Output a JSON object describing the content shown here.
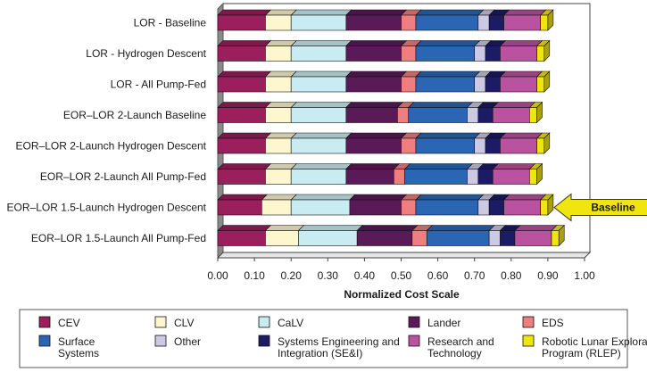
{
  "chart_data": {
    "type": "bar",
    "orientation": "horizontal",
    "stacked": true,
    "categories": [
      "LOR - Baseline",
      "LOR - Hydrogen Descent",
      "LOR - All Pump-Fed",
      "EOR–LOR 2-Launch Baseline",
      "EOR–LOR 2-Launch Hydrogen Descent",
      "EOR–LOR 2-Launch All Pump-Fed",
      "EOR–LOR 1.5-Launch Hydrogen Descent",
      "EOR–LOR 1.5-Launch All Pump-Fed"
    ],
    "series": [
      {
        "name": "CEV",
        "color": "#9b1f5c",
        "values": [
          0.13,
          0.13,
          0.13,
          0.13,
          0.13,
          0.13,
          0.12,
          0.13
        ]
      },
      {
        "name": "CLV",
        "color": "#fdf6cf",
        "values": [
          0.07,
          0.07,
          0.07,
          0.07,
          0.07,
          0.07,
          0.08,
          0.09
        ]
      },
      {
        "name": "CaLV",
        "color": "#c9ecf2",
        "values": [
          0.15,
          0.15,
          0.15,
          0.15,
          0.15,
          0.15,
          0.16,
          0.16
        ]
      },
      {
        "name": "Lander",
        "color": "#5a1a58",
        "values": [
          0.15,
          0.15,
          0.15,
          0.14,
          0.15,
          0.13,
          0.14,
          0.15
        ]
      },
      {
        "name": "EDS",
        "color": "#ef7f7f",
        "values": [
          0.04,
          0.04,
          0.04,
          0.03,
          0.04,
          0.03,
          0.04,
          0.04
        ]
      },
      {
        "name": "Surface Systems",
        "color": "#2b66b5",
        "values": [
          0.17,
          0.16,
          0.16,
          0.16,
          0.16,
          0.17,
          0.17,
          0.17
        ]
      },
      {
        "name": "Other",
        "color": "#cdc8e3",
        "values": [
          0.03,
          0.03,
          0.03,
          0.03,
          0.03,
          0.03,
          0.03,
          0.03
        ]
      },
      {
        "name": "Systems Engineering and Integration (SE&I)",
        "color": "#1b1b66",
        "values": [
          0.04,
          0.04,
          0.04,
          0.04,
          0.04,
          0.04,
          0.04,
          0.04
        ]
      },
      {
        "name": "Research and Technology",
        "color": "#b9529f",
        "values": [
          0.1,
          0.1,
          0.1,
          0.1,
          0.1,
          0.1,
          0.1,
          0.1
        ]
      },
      {
        "name": "Robotic Lunar Exploration Program (RLEP)",
        "color": "#f1e50f",
        "values": [
          0.02,
          0.02,
          0.02,
          0.02,
          0.02,
          0.02,
          0.02,
          0.02
        ]
      }
    ],
    "xlabel": "Normalized Cost Scale",
    "xlim": [
      0,
      1.0
    ],
    "xticks": [
      "0.00",
      "0.10",
      "0.20",
      "0.30",
      "0.40",
      "0.50",
      "0.60",
      "0.70",
      "0.80",
      "0.90",
      "1.00"
    ],
    "grid": false,
    "legend_position": "bottom",
    "legend_columns": [
      [
        "CEV",
        "Surface Systems"
      ],
      [
        "CLV",
        "Other"
      ],
      [
        "CaLV",
        "Systems Engineering and Integration (SE&I)"
      ],
      [
        "Lander",
        "Research and Technology"
      ],
      [
        "EDS",
        "Robotic Lunar Exploration Program (RLEP)"
      ]
    ],
    "legend_labels": [
      {
        "series": "CEV",
        "lines": [
          "CEV"
        ]
      },
      {
        "series": "Surface Systems",
        "lines": [
          "Surface",
          "Systems"
        ]
      },
      {
        "series": "CLV",
        "lines": [
          "CLV"
        ]
      },
      {
        "series": "Other",
        "lines": [
          "Other"
        ]
      },
      {
        "series": "CaLV",
        "lines": [
          "CaLV"
        ]
      },
      {
        "series": "Systems Engineering and Integration (SE&I)",
        "lines": [
          "Systems Engineering and",
          "Integration (SE&I)"
        ]
      },
      {
        "series": "Lander",
        "lines": [
          "Lander"
        ]
      },
      {
        "series": "Research and Technology",
        "lines": [
          "Research and",
          "Technology"
        ]
      },
      {
        "series": "EDS",
        "lines": [
          "EDS"
        ]
      },
      {
        "series": "Robotic Lunar Exploration Program (RLEP)",
        "lines": [
          "Robotic Lunar Exploration",
          "Program (RLEP)"
        ]
      }
    ],
    "annotation": {
      "text": "Baseline",
      "category": "EOR–LOR 1.5-Launch Hydrogen Descent",
      "color": "#f1e50f"
    }
  }
}
